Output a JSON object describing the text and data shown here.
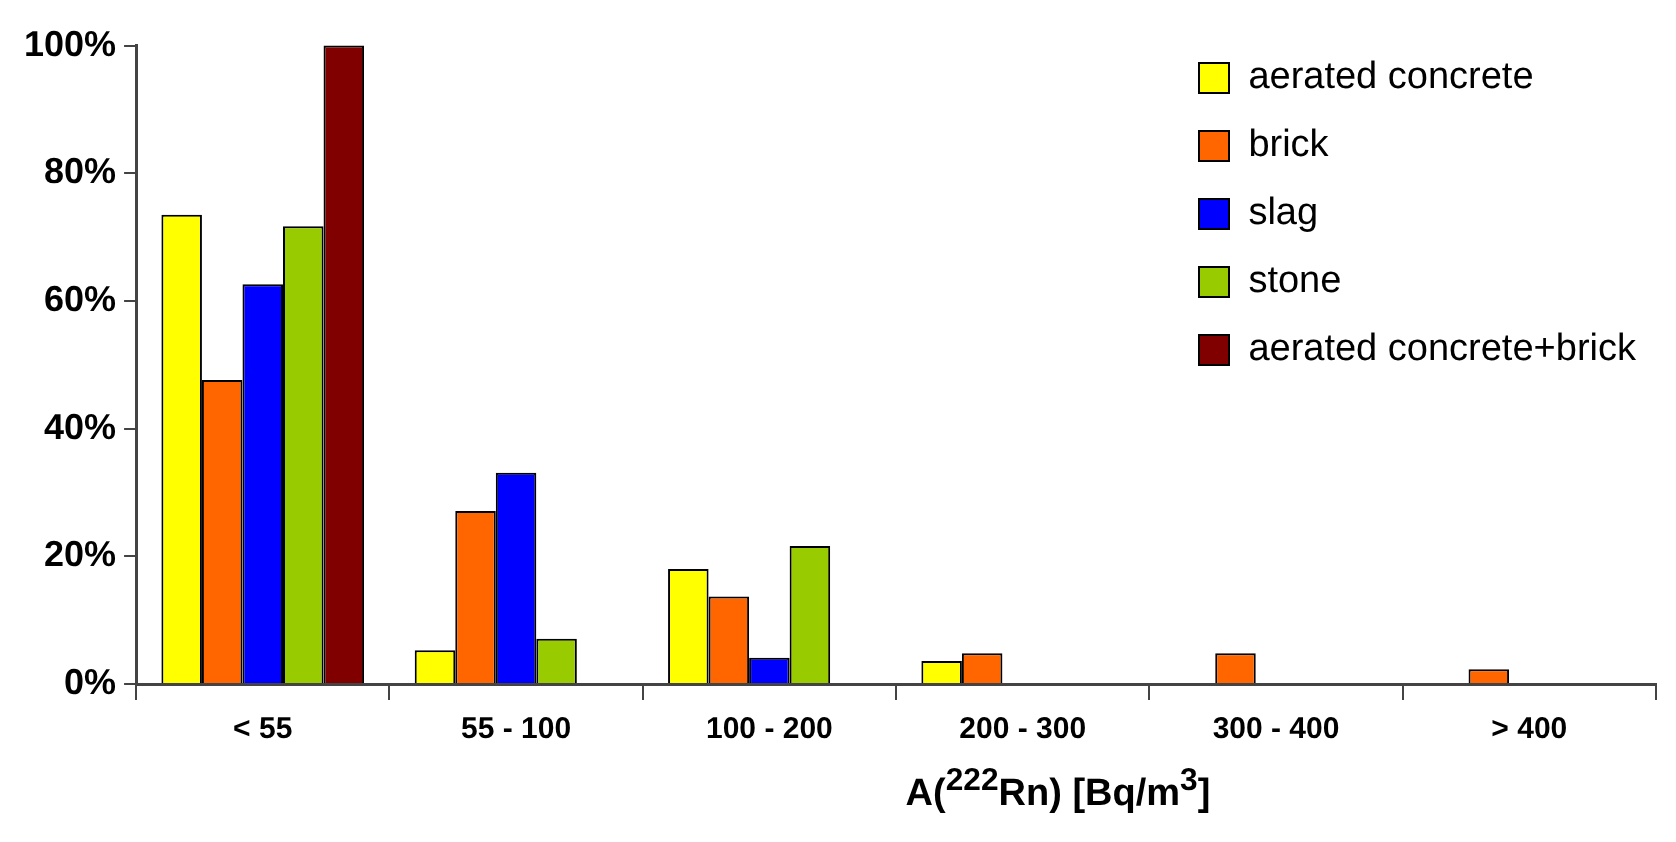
{
  "chart_data": {
    "type": "bar",
    "xlabel": "A($^{222}$Rn) [Bq/m$^{3}$]",
    "categories": [
      "< 55",
      "55 - 100",
      "100 - 200",
      "200 - 300",
      "300 - 400",
      "> 400"
    ],
    "series": [
      {
        "name": "aerated concrete",
        "color": "#ffff00",
        "values": [
          73.5,
          5.3,
          18.0,
          3.6,
          null,
          null
        ]
      },
      {
        "name": "brick",
        "color": "#ff6600",
        "values": [
          47.6,
          27.1,
          13.7,
          4.8,
          4.8,
          2.3
        ]
      },
      {
        "name": "slag",
        "color": "#0000ff",
        "values": [
          62.6,
          33.1,
          4.1,
          null,
          null,
          null
        ]
      },
      {
        "name": "stone",
        "color": "#99cc00",
        "values": [
          71.7,
          7.1,
          21.6,
          null,
          null,
          null
        ]
      },
      {
        "name": "aerated concrete+brick",
        "color": "#800000",
        "values": [
          100,
          null,
          null,
          null,
          null,
          null
        ]
      }
    ],
    "ylim": [
      0,
      100
    ],
    "yticks": [
      {
        "value": 0,
        "label": "0%"
      },
      {
        "value": 20,
        "label": "20%"
      },
      {
        "value": 40,
        "label": "40%"
      },
      {
        "value": 60,
        "label": "60%"
      },
      {
        "value": 80,
        "label": "80%"
      },
      {
        "value": 100,
        "label": "100%"
      }
    ],
    "grid": false,
    "legend": "top right"
  }
}
